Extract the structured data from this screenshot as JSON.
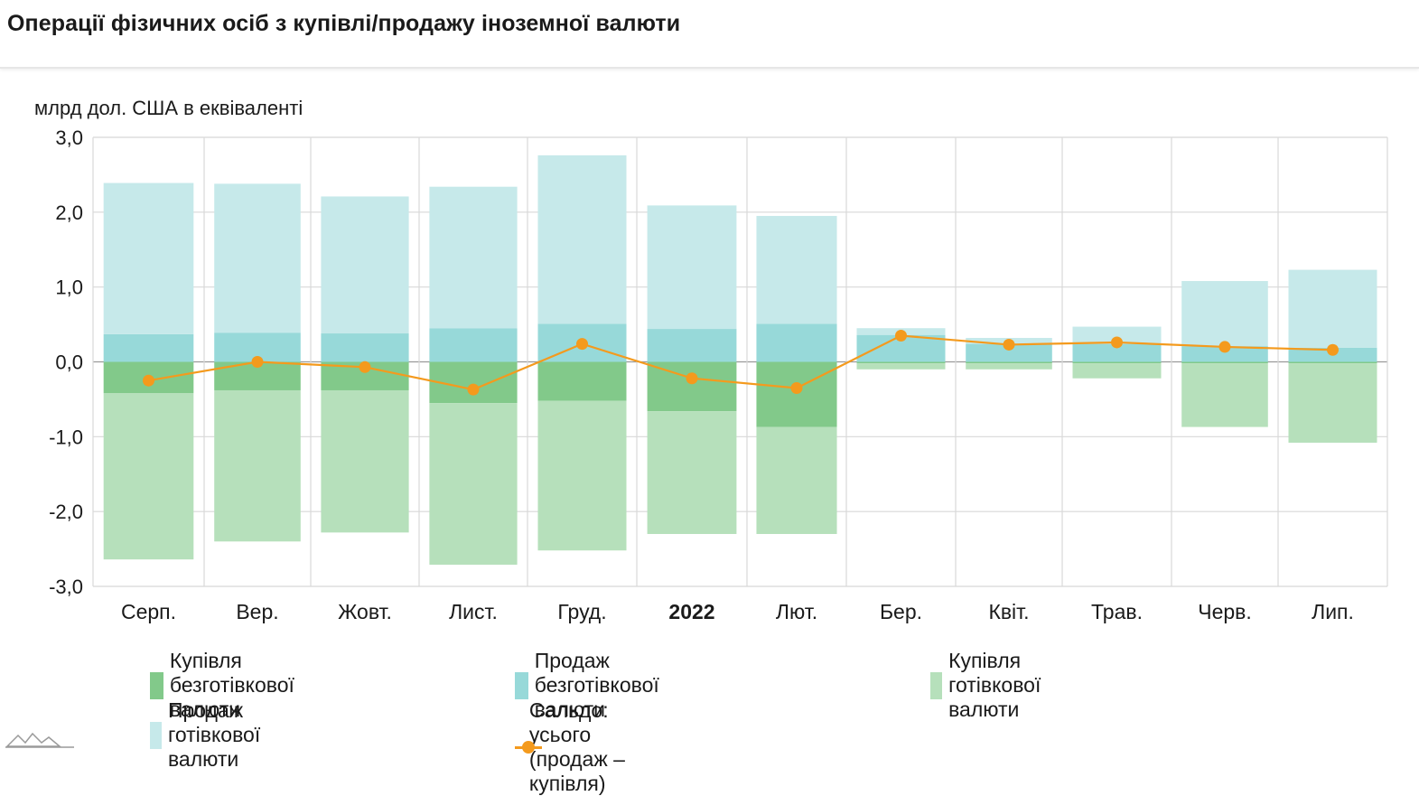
{
  "title": "Операції фізичних осіб з купівлі/продажу іноземної валюти",
  "chart_data": {
    "type": "bar",
    "title": "Операції фізичних осіб з купівлі/продажу іноземної валюти",
    "ylabel": "млрд дол. США в еквіваленті",
    "xlabel": "",
    "ylim": [
      -3.0,
      3.0
    ],
    "yticks": [
      "3,0",
      "2,0",
      "1,0",
      "0,0",
      "-1,0",
      "-2,0",
      "-3,0"
    ],
    "ytick_values": [
      3,
      2,
      1,
      0,
      -1,
      -2,
      -3
    ],
    "categories": [
      "Серп.",
      "Вер.",
      "Жовт.",
      "Лист.",
      "Груд.",
      "2022",
      "Лют.",
      "Бер.",
      "Квіт.",
      "Трав.",
      "Черв.",
      "Лип."
    ],
    "bold_categories": [
      "2022"
    ],
    "grid": true,
    "legend_position": "bottom",
    "series": [
      {
        "name": "Купівля безготівкової валюти",
        "type": "bar",
        "stack": "neg",
        "color": "#82c98a",
        "values": [
          -0.42,
          -0.38,
          -0.38,
          -0.55,
          -0.52,
          -0.66,
          -0.87,
          -0.02,
          -0.02,
          -0.02,
          -0.02,
          -0.02
        ]
      },
      {
        "name": "Продаж безготівкової валюти",
        "type": "bar",
        "stack": "pos",
        "color": "#97d9d9",
        "values": [
          0.37,
          0.39,
          0.38,
          0.45,
          0.51,
          0.44,
          0.51,
          0.36,
          0.24,
          0.24,
          0.21,
          0.19
        ]
      },
      {
        "name": "Купівля готівкової валюти",
        "type": "bar",
        "stack": "neg",
        "color": "#b6e0bb",
        "values": [
          -2.22,
          -2.02,
          -1.9,
          -2.16,
          -2.0,
          -1.64,
          -1.43,
          -0.08,
          -0.08,
          -0.2,
          -0.85,
          -1.06
        ]
      },
      {
        "name": "Продаж готівкової валюти",
        "type": "bar",
        "stack": "pos",
        "color": "#c6e9ea",
        "values": [
          2.02,
          1.99,
          1.83,
          1.89,
          2.25,
          1.65,
          1.44,
          0.09,
          0.08,
          0.23,
          0.87,
          1.04
        ]
      },
      {
        "name": "Сальдо: усього (продаж – купівля)",
        "type": "line",
        "color": "#f49a1d",
        "values": [
          -0.25,
          0.0,
          -0.07,
          -0.37,
          0.24,
          -0.22,
          -0.35,
          0.35,
          0.23,
          0.26,
          0.2,
          0.16
        ]
      }
    ]
  },
  "colors": {
    "grid": "#d8d8d8",
    "zero_line": "#9a9a9a",
    "axis_text": "#1a1a1a",
    "logo": "#9a9a9a"
  },
  "logo_icon": "mountain-logo-icon"
}
